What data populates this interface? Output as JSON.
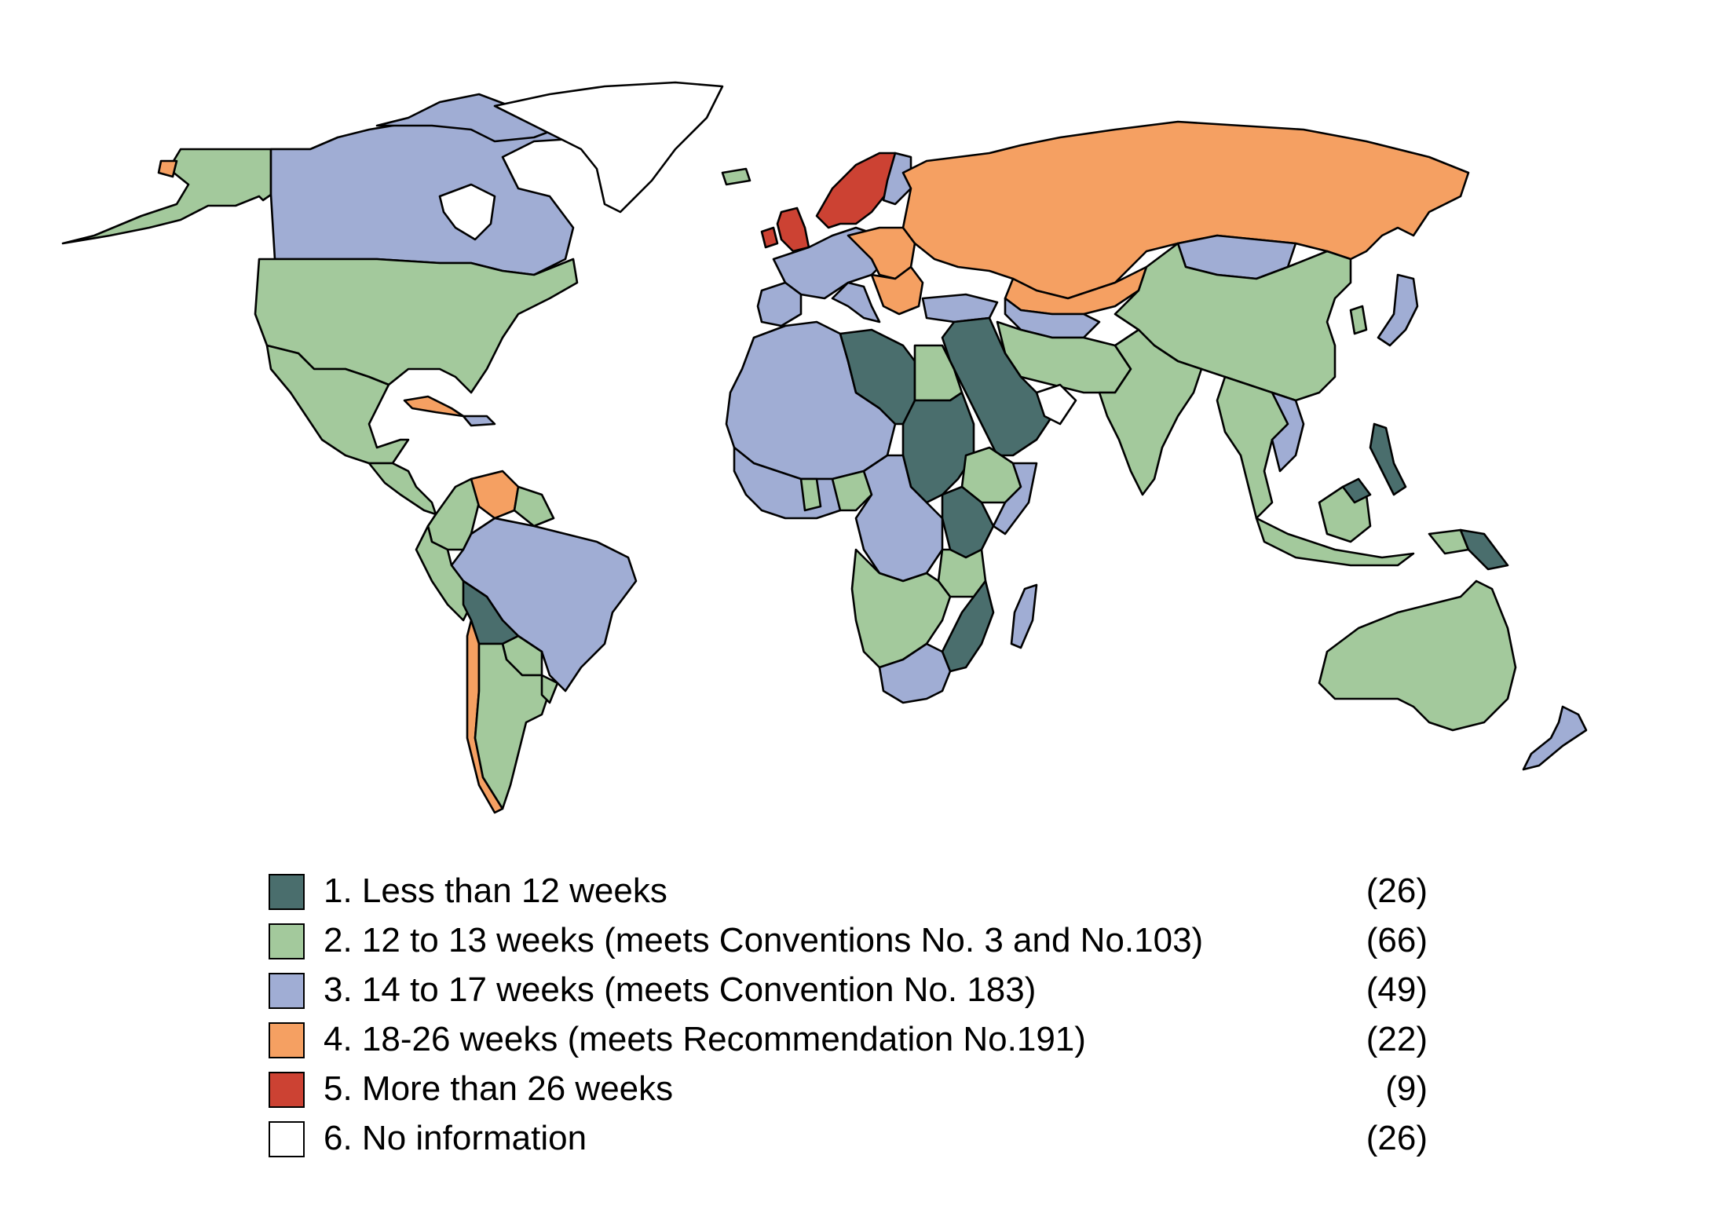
{
  "colors": {
    "cat1": "#4a6e6d",
    "cat2": "#a3c99c",
    "cat3": "#a0add4",
    "cat4": "#f5a062",
    "cat5": "#cc4233",
    "cat6": "#ffffff"
  },
  "legend": [
    {
      "label": "1. Less than 12 weeks",
      "count": "(26)",
      "color": "#4a6e6d"
    },
    {
      "label": "2. 12 to 13 weeks (meets Conventions No. 3 and No.103)",
      "count": "(66)",
      "color": "#a3c99c"
    },
    {
      "label": "3. 14 to 17 weeks (meets Convention No. 183)",
      "count": "(49)",
      "color": "#a0add4"
    },
    {
      "label": "4. 18-26 weeks (meets Recommendation No.191)",
      "count": "(22)",
      "color": "#f5a062"
    },
    {
      "label": "5. More than 26 weeks",
      "count": "(9)",
      "color": "#cc4233"
    },
    {
      "label": "6. No information",
      "count": "(26)",
      "color": "#ffffff"
    }
  ]
}
